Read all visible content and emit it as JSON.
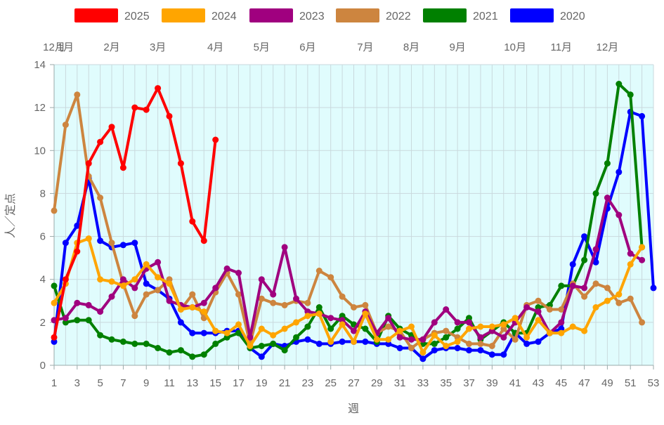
{
  "chart_data": {
    "type": "line",
    "xlabel": "週",
    "ylabel": "人／定点",
    "xlim": [
      1,
      53
    ],
    "ylim": [
      0,
      14
    ],
    "x_ticks": [
      1,
      3,
      5,
      7,
      9,
      11,
      13,
      15,
      17,
      19,
      21,
      23,
      25,
      27,
      29,
      31,
      33,
      35,
      37,
      39,
      41,
      43,
      45,
      47,
      49,
      51,
      53
    ],
    "y_ticks": [
      0,
      2,
      4,
      6,
      8,
      10,
      12,
      14
    ],
    "grid": true,
    "legend_position": "top",
    "month_labels": [
      {
        "week": 1,
        "label": "12月"
      },
      {
        "week": 2,
        "label": "1月"
      },
      {
        "week": 6,
        "label": "2月"
      },
      {
        "week": 10,
        "label": "3月"
      },
      {
        "week": 15,
        "label": "4月"
      },
      {
        "week": 19,
        "label": "5月"
      },
      {
        "week": 23,
        "label": "6月"
      },
      {
        "week": 28,
        "label": "7月"
      },
      {
        "week": 32,
        "label": "8月"
      },
      {
        "week": 36,
        "label": "9月"
      },
      {
        "week": 41,
        "label": "10月"
      },
      {
        "week": 45,
        "label": "11月"
      },
      {
        "week": 49,
        "label": "12月"
      }
    ],
    "series": [
      {
        "name": "2025",
        "color": "#ff0000",
        "values": [
          1.3,
          4.0,
          5.3,
          9.4,
          10.4,
          11.1,
          9.2,
          12.0,
          11.9,
          12.9,
          11.6,
          9.4,
          6.7,
          5.8,
          10.5
        ]
      },
      {
        "name": "2024",
        "color": "#ffa500",
        "values": [
          2.9,
          3.8,
          5.7,
          5.9,
          4.0,
          3.9,
          3.7,
          4.0,
          4.7,
          4.1,
          3.8,
          2.6,
          2.7,
          2.5,
          1.6,
          1.5,
          1.9,
          0.9,
          1.7,
          1.4,
          1.7,
          2.0,
          2.3,
          2.4,
          1.1,
          1.9,
          1.1,
          2.4,
          1.2,
          1.2,
          1.6,
          1.8,
          0.6,
          1.4,
          0.9,
          1.1,
          1.7,
          1.8,
          1.8,
          1.9,
          2.2,
          1.3,
          2.1,
          1.5,
          1.5,
          1.8,
          1.6,
          2.7,
          3.0,
          3.3,
          4.7,
          5.5
        ]
      },
      {
        "name": "2023",
        "color": "#a0007f",
        "values": [
          2.1,
          2.2,
          2.9,
          2.8,
          2.5,
          3.2,
          4.0,
          3.6,
          4.5,
          4.8,
          3.0,
          2.8,
          2.7,
          2.9,
          3.6,
          4.5,
          4.3,
          1.3,
          4.0,
          3.3,
          5.5,
          3.1,
          2.5,
          2.4,
          2.2,
          2.1,
          1.6,
          2.5,
          1.5,
          2.2,
          1.3,
          1.2,
          1.2,
          2.0,
          2.6,
          2.0,
          2.0,
          1.3,
          1.6,
          1.3,
          2.0,
          2.7,
          2.5,
          1.5,
          2.0,
          3.7,
          3.6,
          5.4,
          7.8,
          7.0,
          5.2,
          4.9
        ]
      },
      {
        "name": "2022",
        "color": "#cd853f",
        "values": [
          7.2,
          11.2,
          12.6,
          8.8,
          7.8,
          5.7,
          3.8,
          2.3,
          3.3,
          3.5,
          4.0,
          2.6,
          3.3,
          2.2,
          3.4,
          4.3,
          3.3,
          1.0,
          3.1,
          2.9,
          2.8,
          3.0,
          2.9,
          4.4,
          4.1,
          3.2,
          2.7,
          2.8,
          1.5,
          1.8,
          1.6,
          0.8,
          1.2,
          1.5,
          1.6,
          1.3,
          1.0,
          1.0,
          0.9,
          1.7,
          1.2,
          2.8,
          3.0,
          2.6,
          2.6,
          3.8,
          3.2,
          3.8,
          3.6,
          2.9,
          3.1,
          2.0
        ]
      },
      {
        "name": "2021",
        "color": "#008000",
        "values": [
          3.7,
          2.0,
          2.1,
          2.1,
          1.4,
          1.2,
          1.1,
          1.0,
          1.0,
          0.8,
          0.6,
          0.7,
          0.4,
          0.5,
          1.0,
          1.3,
          1.5,
          0.8,
          0.9,
          1.0,
          0.7,
          1.3,
          1.8,
          2.7,
          1.7,
          2.3,
          1.9,
          1.7,
          1.1,
          2.3,
          1.7,
          1.4,
          1.0,
          1.0,
          1.3,
          1.7,
          2.2,
          1.2,
          1.6,
          2.0,
          1.5,
          1.5,
          2.7,
          2.8,
          3.7,
          3.7,
          4.9,
          8.0,
          9.4,
          13.1,
          12.6,
          5.5
        ]
      },
      {
        "name": "2020",
        "color": "#0000ff",
        "values": [
          1.1,
          5.7,
          6.5,
          8.7,
          5.8,
          5.5,
          5.6,
          5.7,
          3.8,
          3.5,
          3.1,
          2.0,
          1.5,
          1.5,
          1.5,
          1.6,
          1.6,
          0.8,
          0.4,
          1.0,
          0.9,
          1.1,
          1.2,
          1.0,
          1.0,
          1.1,
          1.1,
          1.1,
          1.0,
          1.0,
          0.8,
          0.8,
          0.3,
          0.7,
          0.8,
          0.8,
          0.7,
          0.7,
          0.5,
          0.5,
          1.5,
          1.0,
          1.1,
          1.5,
          1.7,
          4.7,
          6.0,
          4.8,
          7.3,
          9.0,
          11.8,
          11.6,
          3.6
        ]
      }
    ]
  }
}
